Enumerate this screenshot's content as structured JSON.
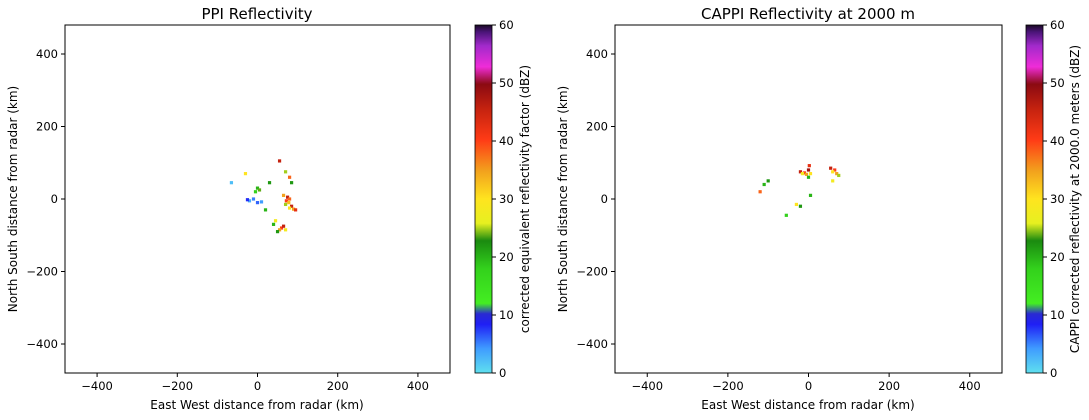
{
  "chart_data": [
    {
      "type": "heatmap",
      "title": "PPI Reflectivity",
      "xlabel": "East West distance from radar (km)",
      "ylabel": "North South distance from radar (km)",
      "xlim": [
        -480,
        480
      ],
      "ylim": [
        -480,
        480
      ],
      "xticks": [
        -400,
        -200,
        0,
        200,
        400
      ],
      "yticks": [
        -400,
        -200,
        0,
        200,
        400
      ],
      "grid": false,
      "colorbar": {
        "label": "corrected equivalent reflectivity factor (dBZ)",
        "range": [
          0,
          60
        ],
        "ticks": [
          0,
          10,
          20,
          30,
          40,
          50,
          60
        ]
      },
      "echoes": [
        {
          "x": 75,
          "y": 5,
          "dbz": 45
        },
        {
          "x": 72,
          "y": -5,
          "dbz": 40
        },
        {
          "x": 80,
          "y": 0,
          "dbz": 38
        },
        {
          "x": 85,
          "y": -20,
          "dbz": 45
        },
        {
          "x": 90,
          "y": -28,
          "dbz": 35
        },
        {
          "x": 95,
          "y": -30,
          "dbz": 42
        },
        {
          "x": 80,
          "y": -25,
          "dbz": 30
        },
        {
          "x": 70,
          "y": -15,
          "dbz": 25
        },
        {
          "x": 78,
          "y": -10,
          "dbz": 33
        },
        {
          "x": 60,
          "y": -80,
          "dbz": 40
        },
        {
          "x": 55,
          "y": -85,
          "dbz": 35
        },
        {
          "x": 65,
          "y": -75,
          "dbz": 45
        },
        {
          "x": 50,
          "y": -90,
          "dbz": 22
        },
        {
          "x": 70,
          "y": -85,
          "dbz": 28
        },
        {
          "x": 40,
          "y": -70,
          "dbz": 20
        },
        {
          "x": 55,
          "y": 105,
          "dbz": 45
        },
        {
          "x": 80,
          "y": 60,
          "dbz": 38
        },
        {
          "x": 70,
          "y": 75,
          "dbz": 25
        },
        {
          "x": 85,
          "y": 45,
          "dbz": 22
        },
        {
          "x": 0,
          "y": 30,
          "dbz": 20
        },
        {
          "x": -5,
          "y": 20,
          "dbz": 18
        },
        {
          "x": 5,
          "y": 25,
          "dbz": 24
        },
        {
          "x": -10,
          "y": 0,
          "dbz": 5
        },
        {
          "x": -20,
          "y": -5,
          "dbz": 3
        },
        {
          "x": 0,
          "y": -10,
          "dbz": 6
        },
        {
          "x": 10,
          "y": -8,
          "dbz": 4
        },
        {
          "x": -25,
          "y": -2,
          "dbz": 8
        },
        {
          "x": -65,
          "y": 45,
          "dbz": 2
        },
        {
          "x": -30,
          "y": 70,
          "dbz": 30
        },
        {
          "x": 20,
          "y": -30,
          "dbz": 20
        },
        {
          "x": 45,
          "y": -60,
          "dbz": 28
        },
        {
          "x": 30,
          "y": 45,
          "dbz": 22
        },
        {
          "x": 65,
          "y": 10,
          "dbz": 35
        }
      ]
    },
    {
      "type": "heatmap",
      "title": "CAPPI Reflectivity at 2000 m",
      "xlabel": "East West distance from radar (km)",
      "ylabel": "North South distance from radar (km)",
      "xlim": [
        -480,
        480
      ],
      "ylim": [
        -480,
        480
      ],
      "xticks": [
        -400,
        -200,
        0,
        200,
        400
      ],
      "yticks": [
        -400,
        -200,
        0,
        200,
        400
      ],
      "grid": false,
      "colorbar": {
        "label": "CAPPI corrected reflectivity at 2000.0 meters (dBZ)",
        "range": [
          0,
          60
        ],
        "ticks": [
          0,
          10,
          20,
          30,
          40,
          50,
          60
        ]
      },
      "echoes": [
        {
          "x": -20,
          "y": 75,
          "dbz": 45
        },
        {
          "x": -10,
          "y": 72,
          "dbz": 40
        },
        {
          "x": -5,
          "y": 68,
          "dbz": 35
        },
        {
          "x": 0,
          "y": 80,
          "dbz": 48
        },
        {
          "x": 2,
          "y": 92,
          "dbz": 42
        },
        {
          "x": 5,
          "y": 70,
          "dbz": 30
        },
        {
          "x": -15,
          "y": 70,
          "dbz": 28
        },
        {
          "x": 55,
          "y": 85,
          "dbz": 45
        },
        {
          "x": 65,
          "y": 80,
          "dbz": 40
        },
        {
          "x": 70,
          "y": 70,
          "dbz": 35
        },
        {
          "x": 60,
          "y": 75,
          "dbz": 30
        },
        {
          "x": 75,
          "y": 65,
          "dbz": 25
        },
        {
          "x": 60,
          "y": 50,
          "dbz": 28
        },
        {
          "x": -120,
          "y": 20,
          "dbz": 38
        },
        {
          "x": -110,
          "y": 40,
          "dbz": 20
        },
        {
          "x": -100,
          "y": 50,
          "dbz": 22
        },
        {
          "x": -30,
          "y": -15,
          "dbz": 30
        },
        {
          "x": -20,
          "y": -20,
          "dbz": 22
        },
        {
          "x": 5,
          "y": 10,
          "dbz": 20
        },
        {
          "x": -55,
          "y": -45,
          "dbz": 18
        },
        {
          "x": 0,
          "y": 60,
          "dbz": 20
        }
      ]
    }
  ]
}
